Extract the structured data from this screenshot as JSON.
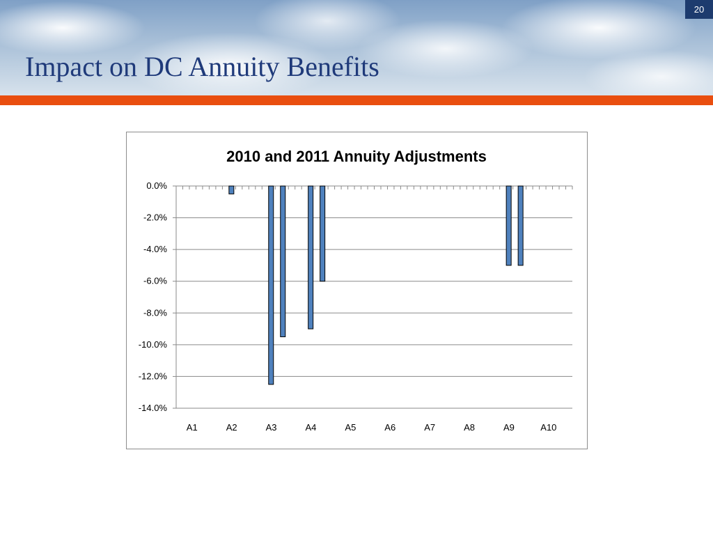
{
  "slide": {
    "title": "Impact on DC Annuity Benefits",
    "page_number": "20"
  },
  "colors": {
    "title": "#1f3a7a",
    "accent_band": "#e94e0f",
    "page_badge": "#1d3b6e",
    "bar_fill": "#4f81bd",
    "bar_stroke": "#000000"
  },
  "chart_data": {
    "type": "bar",
    "title": "2010 and 2011 Annuity Adjustments",
    "xlabel": "",
    "ylabel": "",
    "categories": [
      "A1",
      "A2",
      "A3",
      "A4",
      "A5",
      "A6",
      "A7",
      "A8",
      "A9",
      "A10"
    ],
    "series": [
      {
        "values": [
          0,
          -0.5,
          -12.5,
          -9.0,
          0,
          0,
          0,
          0,
          -5.0,
          0
        ]
      },
      {
        "values": [
          0,
          0,
          -9.5,
          -6.0,
          0,
          0,
          0,
          0,
          -5.0,
          0
        ]
      }
    ],
    "ylim": [
      -14,
      0
    ],
    "yticks": [
      0,
      -2,
      -4,
      -6,
      -8,
      -10,
      -12,
      -14
    ],
    "ytick_labels": [
      "0.0%",
      "-2.0%",
      "-4.0%",
      "-6.0%",
      "-8.0%",
      "-10.0%",
      "-12.0%",
      "-14.0%"
    ],
    "x_axis_position": "bottom",
    "grid": true,
    "legend": "none"
  }
}
